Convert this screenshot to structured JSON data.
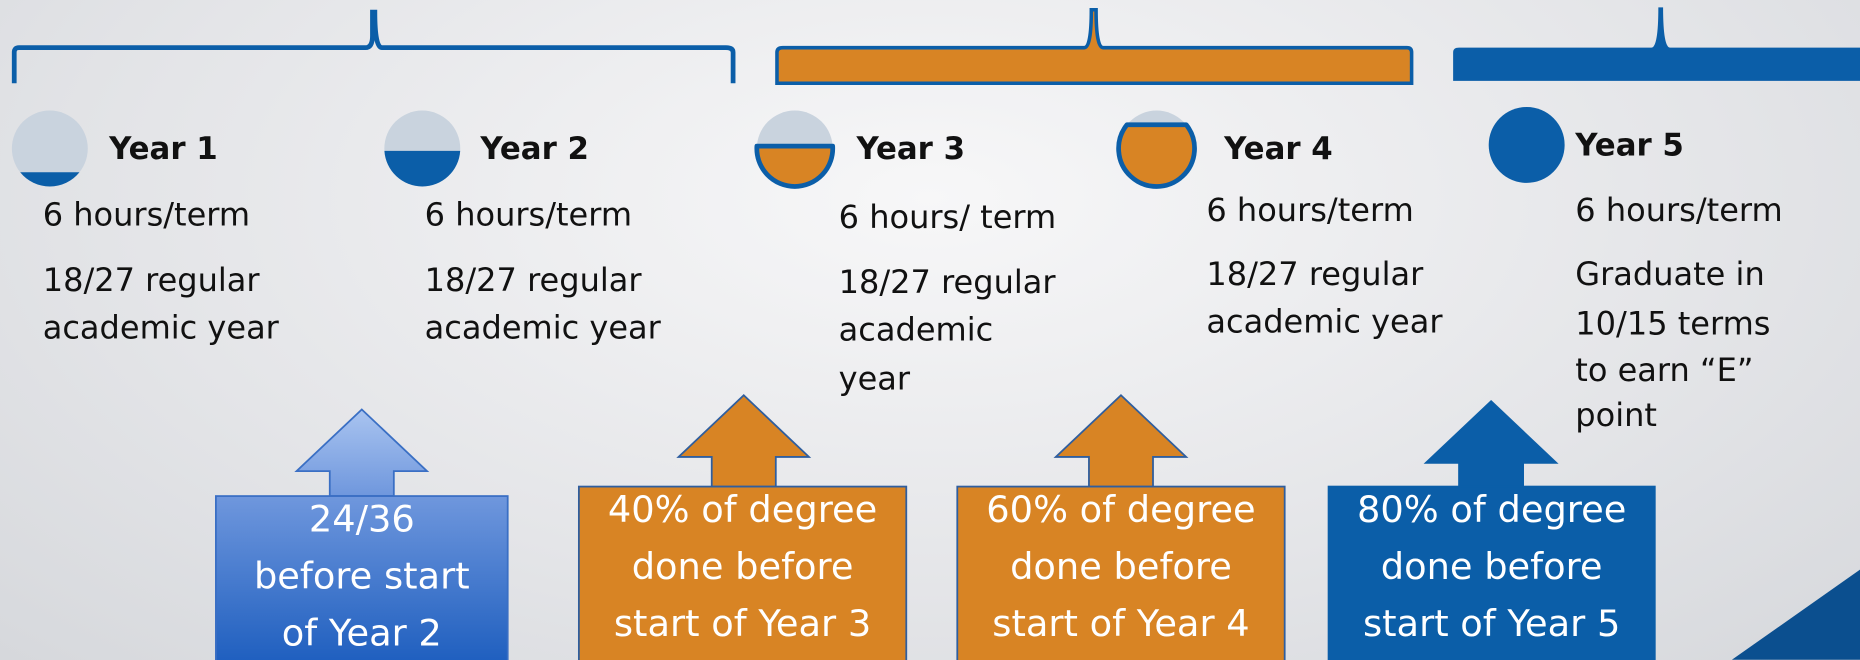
{
  "years": [
    {
      "label": "Year 1",
      "lines": [
        "6 hours/term",
        "18/27 regular",
        "academic year"
      ]
    },
    {
      "label": "Year 2",
      "lines": [
        "6 hours/term",
        "18/27 regular",
        "academic year"
      ]
    },
    {
      "label": "Year 3",
      "lines": [
        "6 hours/ term",
        "18/27 regular",
        "academic",
        "year"
      ]
    },
    {
      "label": "Year 4",
      "lines": [
        "6 hours/term",
        "18/27 regular",
        "academic year"
      ]
    },
    {
      "label": "Year 5",
      "lines": [
        "6 hours/term",
        "Graduate in",
        "10/15 terms",
        "to earn “E”",
        "point"
      ]
    }
  ],
  "callouts": [
    {
      "lines": [
        "24/36",
        "before start",
        "of Year 2"
      ]
    },
    {
      "lines": [
        "40% of degree",
        "done before",
        "start of Year 3"
      ]
    },
    {
      "lines": [
        "60% of degree",
        "done before",
        "start of Year 4"
      ]
    },
    {
      "lines": [
        "80% of degree",
        "done before",
        "start of Year 5"
      ]
    }
  ]
}
